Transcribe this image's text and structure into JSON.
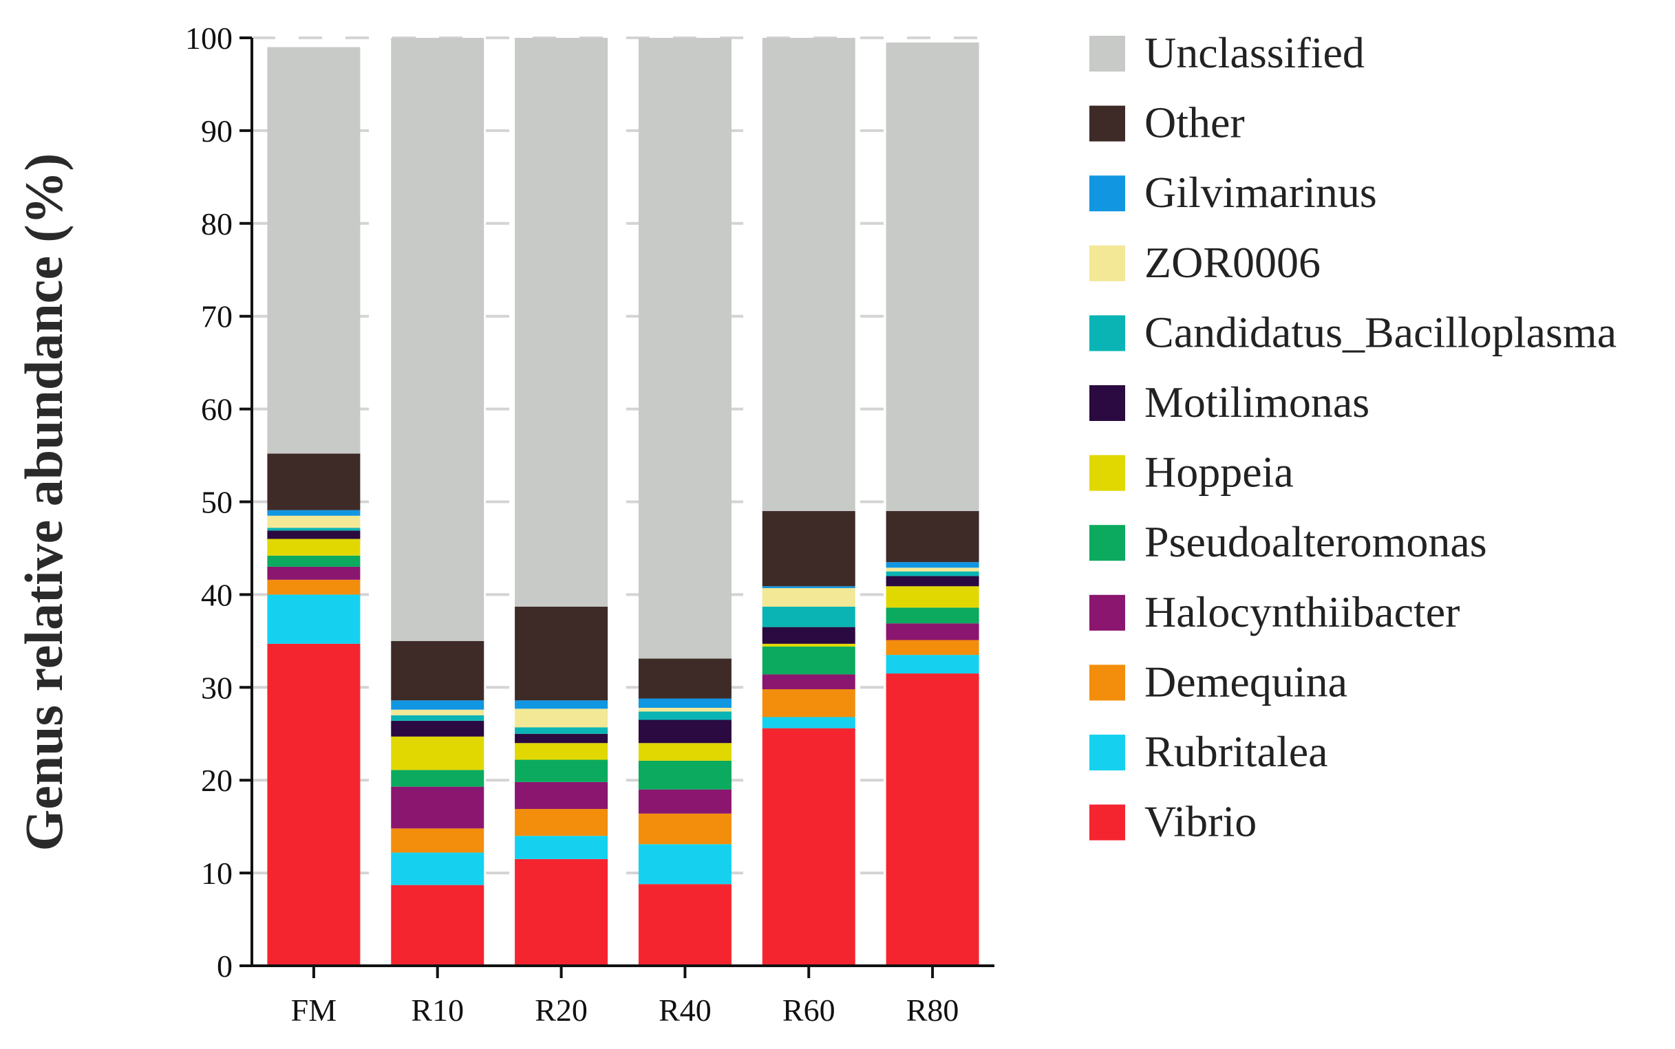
{
  "chart_data": {
    "type": "bar",
    "stacked": true,
    "title": "",
    "xlabel": "",
    "ylabel": "Genus relative abundance (%)",
    "ylim": [
      0,
      100
    ],
    "yticks": [
      "0",
      "10",
      "20",
      "30",
      "40",
      "50",
      "60",
      "70",
      "80",
      "90",
      "100"
    ],
    "grid": "horizontal dashed",
    "legend_position": "right",
    "categories": [
      "FM",
      "R10",
      "R20",
      "R40",
      "R60",
      "R80"
    ],
    "series": [
      {
        "name": "Vibrio",
        "color": "#f52530",
        "values": [
          34.7,
          8.7,
          11.5,
          8.8,
          25.6,
          31.5
        ]
      },
      {
        "name": "Rubritalea",
        "color": "#15d1ef",
        "values": [
          5.3,
          3.5,
          2.5,
          4.3,
          1.2,
          2.0
        ]
      },
      {
        "name": "Demequina",
        "color": "#f28e0c",
        "values": [
          1.6,
          2.6,
          2.9,
          3.3,
          3.0,
          1.6
        ]
      },
      {
        "name": "Halocynthiibacter",
        "color": "#8b1670",
        "values": [
          1.4,
          4.5,
          2.9,
          2.6,
          1.6,
          1.8
        ]
      },
      {
        "name": "Pseudoalteromonas",
        "color": "#0baa5e",
        "values": [
          1.2,
          1.8,
          2.4,
          3.1,
          3.0,
          1.7
        ]
      },
      {
        "name": "Hoppeia",
        "color": "#e0d800",
        "values": [
          1.8,
          3.6,
          1.8,
          1.9,
          0.3,
          2.3
        ]
      },
      {
        "name": "Motilimonas",
        "color": "#2a0a40",
        "values": [
          0.9,
          1.7,
          1.0,
          2.5,
          1.8,
          1.1
        ]
      },
      {
        "name": "Candidatus_Bacilloplasma",
        "color": "#0ab4b4",
        "values": [
          0.3,
          0.6,
          0.7,
          0.9,
          2.2,
          0.5
        ]
      },
      {
        "name": "ZOR0006",
        "color": "#f2e896",
        "values": [
          1.3,
          0.6,
          2.0,
          0.4,
          2.0,
          0.4
        ]
      },
      {
        "name": "Gilvimarinus",
        "color": "#1196e2",
        "values": [
          0.6,
          1.0,
          0.9,
          1.0,
          0.2,
          0.6
        ]
      },
      {
        "name": "Other",
        "color": "#3e2b28",
        "values": [
          6.1,
          6.4,
          10.1,
          4.3,
          8.1,
          5.5
        ]
      },
      {
        "name": "Unclassified",
        "color": "#c8cac8",
        "values": [
          43.8,
          65.0,
          61.3,
          66.9,
          51.0,
          50.5
        ]
      }
    ]
  }
}
